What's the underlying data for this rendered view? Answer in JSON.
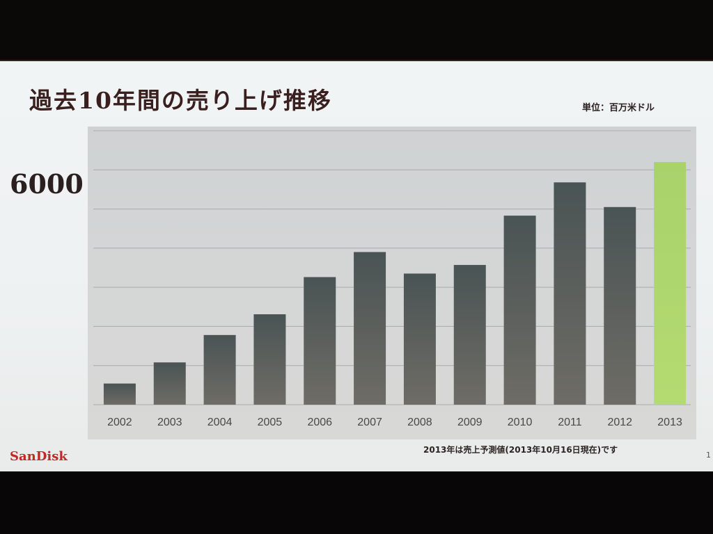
{
  "slide": {
    "title": "過去10年間の売り上げ推移",
    "unit_label": "単位：百万米ドル",
    "axis_marker": "6000",
    "logo_text": "SanDisk",
    "footnote": "2013年は売上予測値(2013年10月16日現在)です",
    "page_number": "1"
  },
  "chart_data": {
    "type": "bar",
    "title": "過去10年間の売り上げ推移",
    "ylabel": "単位：百万米ドル",
    "categories": [
      "2002",
      "2003",
      "2004",
      "2005",
      "2006",
      "2007",
      "2008",
      "2009",
      "2010",
      "2011",
      "2012",
      "2013"
    ],
    "values": [
      540,
      1080,
      1780,
      2310,
      3260,
      3900,
      3350,
      3570,
      4830,
      5680,
      5050,
      6200
    ],
    "highlight_index": 11,
    "ylim": [
      0,
      7000
    ],
    "grid": true,
    "colors": {
      "bar_top": "#4a5454",
      "bar_bottom": "#6e6c66",
      "highlight_top": "#a9d26b",
      "highlight_bottom": "#b4db72",
      "gridline": "#a8aaab",
      "tick_text": "#4a4848"
    }
  }
}
